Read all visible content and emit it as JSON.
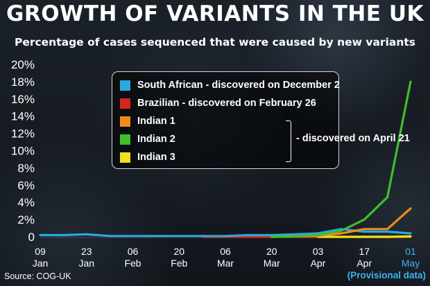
{
  "header": {
    "title": "GROWTH OF VARIANTS IN THE UK",
    "subtitle": "Percentage of cases sequenced that were caused by new variants"
  },
  "footer": {
    "source": "Source: COG-UK",
    "note": "(Provisional data)"
  },
  "legend": {
    "items": [
      {
        "label": "South African - discovered on December 2",
        "color": "#29a8e0"
      },
      {
        "label": "Brazilian - discovered on February 26",
        "color": "#d9241c"
      },
      {
        "label": "Indian 1",
        "color": "#f28c1b"
      },
      {
        "label": "Indian 2",
        "color": "#3fbf2a"
      },
      {
        "label": "Indian 3",
        "color": "#f2e21b"
      }
    ],
    "group_label": "- discovered on April 21"
  },
  "chart_data": {
    "type": "line",
    "title": "GROWTH OF VARIANTS IN THE UK",
    "subtitle": "Percentage of cases sequenced that were caused by new variants",
    "xlabel": "",
    "ylabel": "",
    "ylim": [
      0,
      20
    ],
    "y_ticks": [
      "0",
      "2%",
      "4%",
      "6%",
      "8%",
      "10%",
      "12%",
      "14%",
      "16%",
      "18%",
      "20%"
    ],
    "x_ticks": [
      {
        "day": "09",
        "month": "Jan"
      },
      {
        "day": "23",
        "month": "Jan"
      },
      {
        "day": "06",
        "month": "Feb"
      },
      {
        "day": "20",
        "month": "Feb"
      },
      {
        "day": "06",
        "month": "Mar"
      },
      {
        "day": "20",
        "month": "Mar"
      },
      {
        "day": "03",
        "month": "Apr"
      },
      {
        "day": "17",
        "month": "Apr"
      },
      {
        "day": "01",
        "month": "May",
        "highlight": true
      }
    ],
    "grid": false,
    "legend_position": "top-center",
    "series": [
      {
        "name": "South African - discovered on December 2",
        "color": "#29a8e0",
        "x": [
          "2021-01-09",
          "2021-01-16",
          "2021-01-23",
          "2021-01-30",
          "2021-02-06",
          "2021-02-13",
          "2021-02-20",
          "2021-02-27",
          "2021-03-06",
          "2021-03-13",
          "2021-03-20",
          "2021-03-27",
          "2021-04-03",
          "2021-04-10",
          "2021-04-17",
          "2021-04-24",
          "2021-05-01"
        ],
        "values": [
          0.2,
          0.2,
          0.3,
          0.1,
          0.1,
          0.1,
          0.1,
          0.1,
          0.1,
          0.2,
          0.2,
          0.3,
          0.4,
          0.9,
          0.6,
          0.6,
          0.4
        ]
      },
      {
        "name": "Brazilian - discovered on February 26",
        "color": "#d9241c",
        "x": [
          "2021-02-27",
          "2021-03-06",
          "2021-03-13",
          "2021-03-20",
          "2021-03-27",
          "2021-04-03",
          "2021-04-10",
          "2021-04-17",
          "2021-04-24",
          "2021-05-01"
        ],
        "values": [
          0,
          0,
          0,
          0,
          0,
          0,
          0,
          0,
          0,
          0
        ]
      },
      {
        "name": "Indian 1",
        "color": "#f28c1b",
        "x": [
          "2021-03-20",
          "2021-03-27",
          "2021-04-03",
          "2021-04-10",
          "2021-04-17",
          "2021-04-24",
          "2021-05-01"
        ],
        "values": [
          0,
          0.05,
          0.1,
          0.4,
          0.9,
          0.9,
          3.3
        ]
      },
      {
        "name": "Indian 2",
        "color": "#3fbf2a",
        "x": [
          "2021-03-20",
          "2021-03-27",
          "2021-04-03",
          "2021-04-10",
          "2021-04-17",
          "2021-04-24",
          "2021-05-01"
        ],
        "values": [
          0,
          0.05,
          0.2,
          0.7,
          2.0,
          4.6,
          18.0
        ]
      },
      {
        "name": "Indian 3",
        "color": "#f2e21b",
        "x": [
          "2021-04-03",
          "2021-04-10",
          "2021-04-17",
          "2021-04-24",
          "2021-05-01"
        ],
        "values": [
          0,
          0,
          0,
          0,
          0.05
        ]
      }
    ]
  }
}
